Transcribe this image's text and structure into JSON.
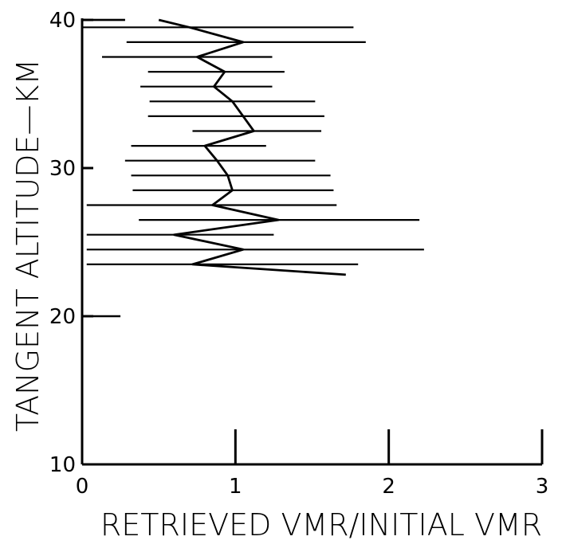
{
  "chart_data": {
    "type": "line",
    "title": "",
    "xlabel": "RETRIEVED VMR/INITIAL VMR",
    "ylabel": "TANGENT ALTITUDE—KM",
    "xlim": [
      0,
      3
    ],
    "ylim": [
      10,
      40
    ],
    "x_ticks": [
      0,
      1,
      2,
      3
    ],
    "y_ticks": [
      10,
      20,
      30,
      40
    ],
    "grid": false,
    "colors": {
      "line": "#000000",
      "errorbar": "#000000",
      "axis": "#000000"
    },
    "series": [
      {
        "points": [
          {
            "alt": 40.0,
            "value": 0.5,
            "low": 0.0,
            "high": 0.28
          },
          {
            "alt": 39.5,
            "value": 0.7,
            "low": 0.0,
            "high": 1.77
          },
          {
            "alt": 38.5,
            "value": 1.05,
            "low": 0.29,
            "high": 1.85
          },
          {
            "alt": 37.5,
            "value": 0.75,
            "low": 0.13,
            "high": 1.24
          },
          {
            "alt": 36.5,
            "value": 0.93,
            "low": 0.43,
            "high": 1.32
          },
          {
            "alt": 35.5,
            "value": 0.86,
            "low": 0.38,
            "high": 1.24
          },
          {
            "alt": 34.5,
            "value": 0.98,
            "low": 0.44,
            "high": 1.52
          },
          {
            "alt": 33.5,
            "value": 1.05,
            "low": 0.43,
            "high": 1.58
          },
          {
            "alt": 32.5,
            "value": 1.12,
            "low": 0.72,
            "high": 1.56
          },
          {
            "alt": 31.5,
            "value": 0.8,
            "low": 0.32,
            "high": 1.2
          },
          {
            "alt": 30.5,
            "value": 0.88,
            "low": 0.28,
            "high": 1.52
          },
          {
            "alt": 29.5,
            "value": 0.95,
            "low": 0.32,
            "high": 1.62
          },
          {
            "alt": 28.5,
            "value": 0.98,
            "low": 0.33,
            "high": 1.64
          },
          {
            "alt": 27.5,
            "value": 0.85,
            "low": 0.03,
            "high": 1.66
          },
          {
            "alt": 26.5,
            "value": 1.28,
            "low": 0.37,
            "high": 2.2
          },
          {
            "alt": 25.5,
            "value": 0.6,
            "low": 0.03,
            "high": 1.25
          },
          {
            "alt": 24.5,
            "value": 1.05,
            "low": 0.03,
            "high": 2.23
          },
          {
            "alt": 23.5,
            "value": 0.72,
            "low": 0.03,
            "high": 1.8
          },
          {
            "alt": 22.8,
            "value": 1.72
          }
        ]
      }
    ],
    "side_marks": [
      {
        "alt": 40.0,
        "low": 0.0,
        "high": 0.28
      },
      {
        "alt": 20.0,
        "low": 0.0,
        "high": 0.25
      }
    ]
  }
}
